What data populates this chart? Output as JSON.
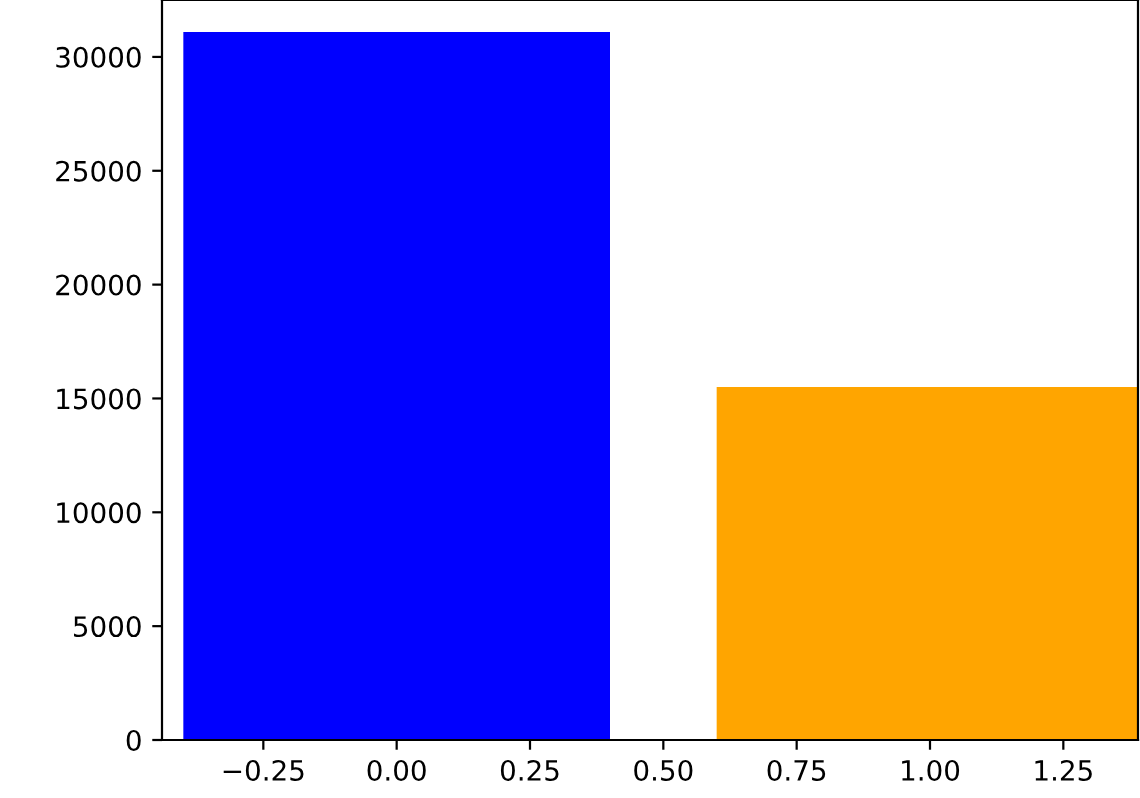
{
  "chart_data": {
    "type": "bar",
    "x": [
      0,
      1
    ],
    "values": [
      31100,
      15500
    ],
    "colors": [
      "#0000ff",
      "#ffa500"
    ],
    "xlim": [
      -0.44,
      1.39
    ],
    "xticks": [
      {
        "value": -0.25,
        "label": "−0.25"
      },
      {
        "value": 0,
        "label": "0.00"
      },
      {
        "value": 0.25,
        "label": "0.25"
      },
      {
        "value": 0.5,
        "label": "0.50"
      },
      {
        "value": 0.75,
        "label": "0.75"
      },
      {
        "value": 1,
        "label": "1.00"
      },
      {
        "value": 1.25,
        "label": "1.25"
      }
    ],
    "ylim": [
      0,
      32500
    ],
    "yticks": [
      0,
      5000,
      10000,
      15000,
      20000,
      25000,
      30000
    ],
    "grid": false,
    "legend": false
  }
}
